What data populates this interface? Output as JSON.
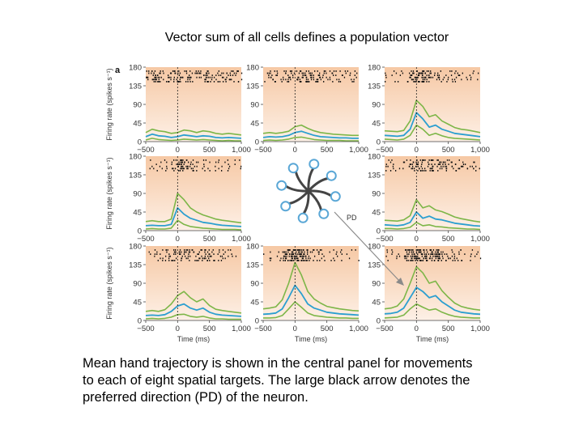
{
  "title": "Vector sum of all cells defines a population vector",
  "caption_lines": [
    "Mean hand trajectory is shown in the central panel for movements",
    "to each of eight spatial targets. The large black arrow denotes the",
    "preferred direction (PD) of the neuron."
  ],
  "colors": {
    "panel_background_top": "#f6c8a4",
    "panel_background_bottom": "#fdf0e6",
    "confidence_band": "#7db648",
    "mean_rate": "#2b9fd0",
    "raster": "#111111",
    "arrow": "#8a8a8a",
    "trajectory": "#444444",
    "target": "#5aa7d6"
  },
  "chart_data": {
    "type": "line",
    "panel_label": "a",
    "ylabel": "Firing rate (spikes s⁻¹)",
    "xlabel": "Time (ms)",
    "xlim": [
      -500,
      1000
    ],
    "ylim": [
      0,
      180
    ],
    "x_ticks": [
      -500,
      0,
      500,
      1000
    ],
    "x_tick_labels": [
      "−500",
      "0",
      "500",
      "1,000"
    ],
    "y_ticks": [
      0,
      45,
      90,
      135,
      180
    ],
    "pd_label": "PD",
    "x": [
      -500,
      -400,
      -300,
      -200,
      -100,
      0,
      100,
      200,
      300,
      400,
      500,
      600,
      700,
      800,
      900,
      1000
    ],
    "panels": [
      {
        "position": "top-left",
        "mean": [
          12,
          18,
          14,
          13,
          10,
          12,
          16,
          14,
          12,
          14,
          13,
          10,
          9,
          10,
          9,
          8
        ],
        "upper": [
          22,
          30,
          26,
          24,
          20,
          22,
          28,
          26,
          22,
          26,
          24,
          20,
          18,
          20,
          18,
          16
        ],
        "lower": [
          4,
          8,
          5,
          4,
          3,
          4,
          6,
          5,
          4,
          5,
          4,
          3,
          2,
          3,
          2,
          2
        ]
      },
      {
        "position": "top-center",
        "mean": [
          10,
          12,
          11,
          12,
          15,
          22,
          25,
          20,
          15,
          12,
          11,
          10,
          9,
          9,
          8,
          8
        ],
        "upper": [
          20,
          22,
          20,
          22,
          25,
          36,
          40,
          32,
          26,
          22,
          20,
          18,
          17,
          16,
          15,
          15
        ],
        "lower": [
          3,
          4,
          3,
          4,
          6,
          10,
          11,
          8,
          5,
          4,
          3,
          3,
          3,
          2,
          2,
          2
        ]
      },
      {
        "position": "top-right",
        "mean": [
          15,
          14,
          13,
          15,
          30,
          70,
          55,
          35,
          40,
          30,
          25,
          20,
          18,
          16,
          14,
          12
        ],
        "upper": [
          26,
          25,
          24,
          27,
          50,
          100,
          85,
          60,
          65,
          50,
          42,
          34,
          30,
          28,
          25,
          22
        ],
        "lower": [
          6,
          5,
          4,
          6,
          15,
          40,
          30,
          15,
          20,
          14,
          10,
          8,
          7,
          6,
          5,
          4
        ]
      },
      {
        "position": "middle-left",
        "mean": [
          12,
          13,
          12,
          12,
          15,
          55,
          40,
          30,
          25,
          20,
          18,
          15,
          13,
          12,
          11,
          10
        ],
        "upper": [
          22,
          24,
          22,
          22,
          28,
          90,
          75,
          55,
          45,
          38,
          33,
          28,
          25,
          23,
          21,
          19
        ],
        "lower": [
          4,
          5,
          4,
          4,
          6,
          25,
          15,
          10,
          8,
          6,
          5,
          4,
          3,
          3,
          3,
          2
        ]
      },
      {
        "position": "middle-right",
        "mean": [
          14,
          13,
          12,
          14,
          20,
          45,
          30,
          35,
          28,
          26,
          22,
          18,
          16,
          14,
          12,
          11
        ],
        "upper": [
          25,
          24,
          23,
          26,
          36,
          75,
          55,
          60,
          50,
          46,
          40,
          33,
          29,
          26,
          23,
          21
        ],
        "lower": [
          5,
          5,
          4,
          5,
          8,
          20,
          12,
          14,
          10,
          9,
          7,
          6,
          5,
          4,
          4,
          3
        ]
      },
      {
        "position": "bottom-left",
        "mean": [
          12,
          13,
          12,
          14,
          22,
          35,
          40,
          30,
          25,
          30,
          20,
          15,
          13,
          12,
          11,
          10
        ],
        "upper": [
          22,
          24,
          22,
          26,
          40,
          60,
          70,
          55,
          45,
          52,
          36,
          27,
          24,
          22,
          20,
          18
        ],
        "lower": [
          4,
          5,
          4,
          5,
          8,
          14,
          15,
          10,
          8,
          10,
          6,
          4,
          4,
          3,
          3,
          3
        ]
      },
      {
        "position": "bottom-center",
        "mean": [
          15,
          16,
          18,
          28,
          55,
          85,
          65,
          40,
          30,
          25,
          20,
          18,
          16,
          15,
          14,
          13
        ],
        "upper": [
          28,
          30,
          33,
          50,
          90,
          140,
          110,
          70,
          52,
          42,
          34,
          31,
          28,
          26,
          24,
          23
        ],
        "lower": [
          6,
          6,
          7,
          12,
          28,
          45,
          32,
          18,
          12,
          10,
          8,
          7,
          6,
          6,
          5,
          5
        ]
      },
      {
        "position": "bottom-right",
        "mean": [
          16,
          17,
          20,
          30,
          55,
          80,
          70,
          55,
          60,
          45,
          35,
          25,
          20,
          18,
          16,
          15
        ],
        "upper": [
          28,
          30,
          35,
          52,
          90,
          130,
          115,
          90,
          95,
          72,
          56,
          42,
          34,
          30,
          27,
          25
        ],
        "lower": [
          6,
          7,
          8,
          13,
          28,
          40,
          32,
          25,
          28,
          20,
          14,
          10,
          8,
          7,
          6,
          6
        ]
      }
    ]
  }
}
